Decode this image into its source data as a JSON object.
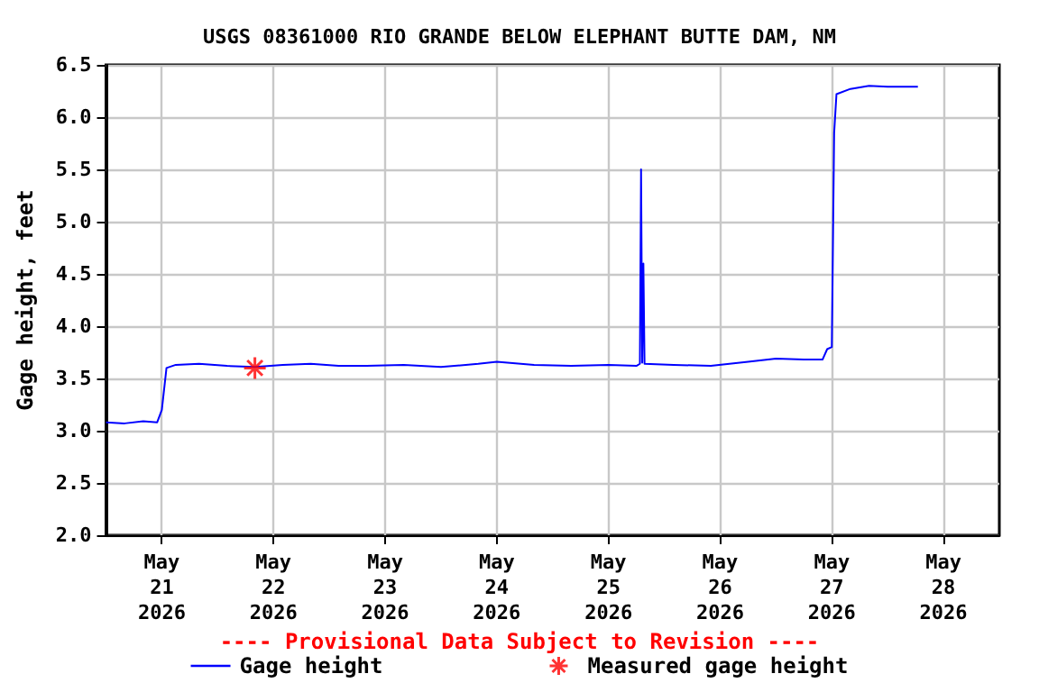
{
  "chart_data": {
    "type": "line",
    "title": "USGS 08361000 RIO GRANDE BELOW ELEPHANT BUTTE DAM, NM",
    "ylabel": "Gage height, feet",
    "annotations": [
      "---- Provisional Data Subject to Revision ----"
    ],
    "series": [
      {
        "name": "Gage height",
        "color": "#0000ff",
        "marker": "none",
        "line_style": "solid",
        "x": [
          "2026-05-20T12:00",
          "2026-05-20T16:00",
          "2026-05-20T20:00",
          "2026-05-20T23:00",
          "2026-05-21T00:00",
          "2026-05-21T01:00",
          "2026-05-21T03:00",
          "2026-05-21T08:00",
          "2026-05-21T14:00",
          "2026-05-21T20:00",
          "2026-05-22T02:00",
          "2026-05-22T08:00",
          "2026-05-22T14:00",
          "2026-05-22T20:00",
          "2026-05-23T04:00",
          "2026-05-23T12:00",
          "2026-05-23T20:00",
          "2026-05-24T00:00",
          "2026-05-24T08:00",
          "2026-05-24T16:00",
          "2026-05-25T00:00",
          "2026-05-25T06:00",
          "2026-05-25T06:45",
          "2026-05-25T07:00",
          "2026-05-25T07:15",
          "2026-05-25T07:30",
          "2026-05-25T07:45",
          "2026-05-25T14:00",
          "2026-05-25T22:00",
          "2026-05-26T06:00",
          "2026-05-26T12:00",
          "2026-05-26T18:00",
          "2026-05-26T22:00",
          "2026-05-26T23:00",
          "2026-05-27T00:00",
          "2026-05-27T00:30",
          "2026-05-27T01:00",
          "2026-05-27T04:00",
          "2026-05-27T08:00",
          "2026-05-27T12:00",
          "2026-05-27T18:30"
        ],
        "values": [
          3.08,
          3.07,
          3.09,
          3.08,
          3.2,
          3.6,
          3.63,
          3.64,
          3.62,
          3.61,
          3.63,
          3.64,
          3.62,
          3.62,
          3.63,
          3.61,
          3.64,
          3.66,
          3.63,
          3.62,
          3.63,
          3.62,
          3.64,
          5.5,
          3.65,
          4.6,
          3.64,
          3.63,
          3.62,
          3.66,
          3.69,
          3.68,
          3.68,
          3.78,
          3.8,
          5.85,
          6.22,
          6.27,
          6.3,
          6.29,
          6.29
        ]
      },
      {
        "name": "Measured gage height",
        "type": "scatter",
        "color": "#ff0000",
        "marker": "cross",
        "x": [
          "2026-05-21T20:00"
        ],
        "values": [
          3.6
        ]
      }
    ],
    "xlim": [
      "2026-05-20T12:00",
      "2026-05-28T12:00"
    ],
    "xticks": [
      {
        "value": "2026-05-21",
        "label": "May\n21\n2026"
      },
      {
        "value": "2026-05-22",
        "label": "May\n22\n2026"
      },
      {
        "value": "2026-05-23",
        "label": "May\n23\n2026"
      },
      {
        "value": "2026-05-24",
        "label": "May\n24\n2026"
      },
      {
        "value": "2026-05-25",
        "label": "May\n25\n2026"
      },
      {
        "value": "2026-05-26",
        "label": "May\n26\n2026"
      },
      {
        "value": "2026-05-27",
        "label": "May\n27\n2026"
      },
      {
        "value": "2026-05-28",
        "label": "May\n28\n2026"
      }
    ],
    "ylim": [
      2.0,
      6.5
    ],
    "yticks": [
      {
        "value": 2,
        "label": "2.0"
      },
      {
        "value": 2.5,
        "label": "2.5"
      },
      {
        "value": 3,
        "label": "3.0"
      },
      {
        "value": 3.5,
        "label": "3.5"
      },
      {
        "value": 4,
        "label": "4.0"
      },
      {
        "value": 4.5,
        "label": "4.5"
      },
      {
        "value": 5,
        "label": "5.0"
      },
      {
        "value": 5.5,
        "label": "5.5"
      },
      {
        "value": 6,
        "label": "6.0"
      },
      {
        "value": 6.5,
        "label": "6.5"
      }
    ],
    "grid": true,
    "legend": "bottom"
  }
}
